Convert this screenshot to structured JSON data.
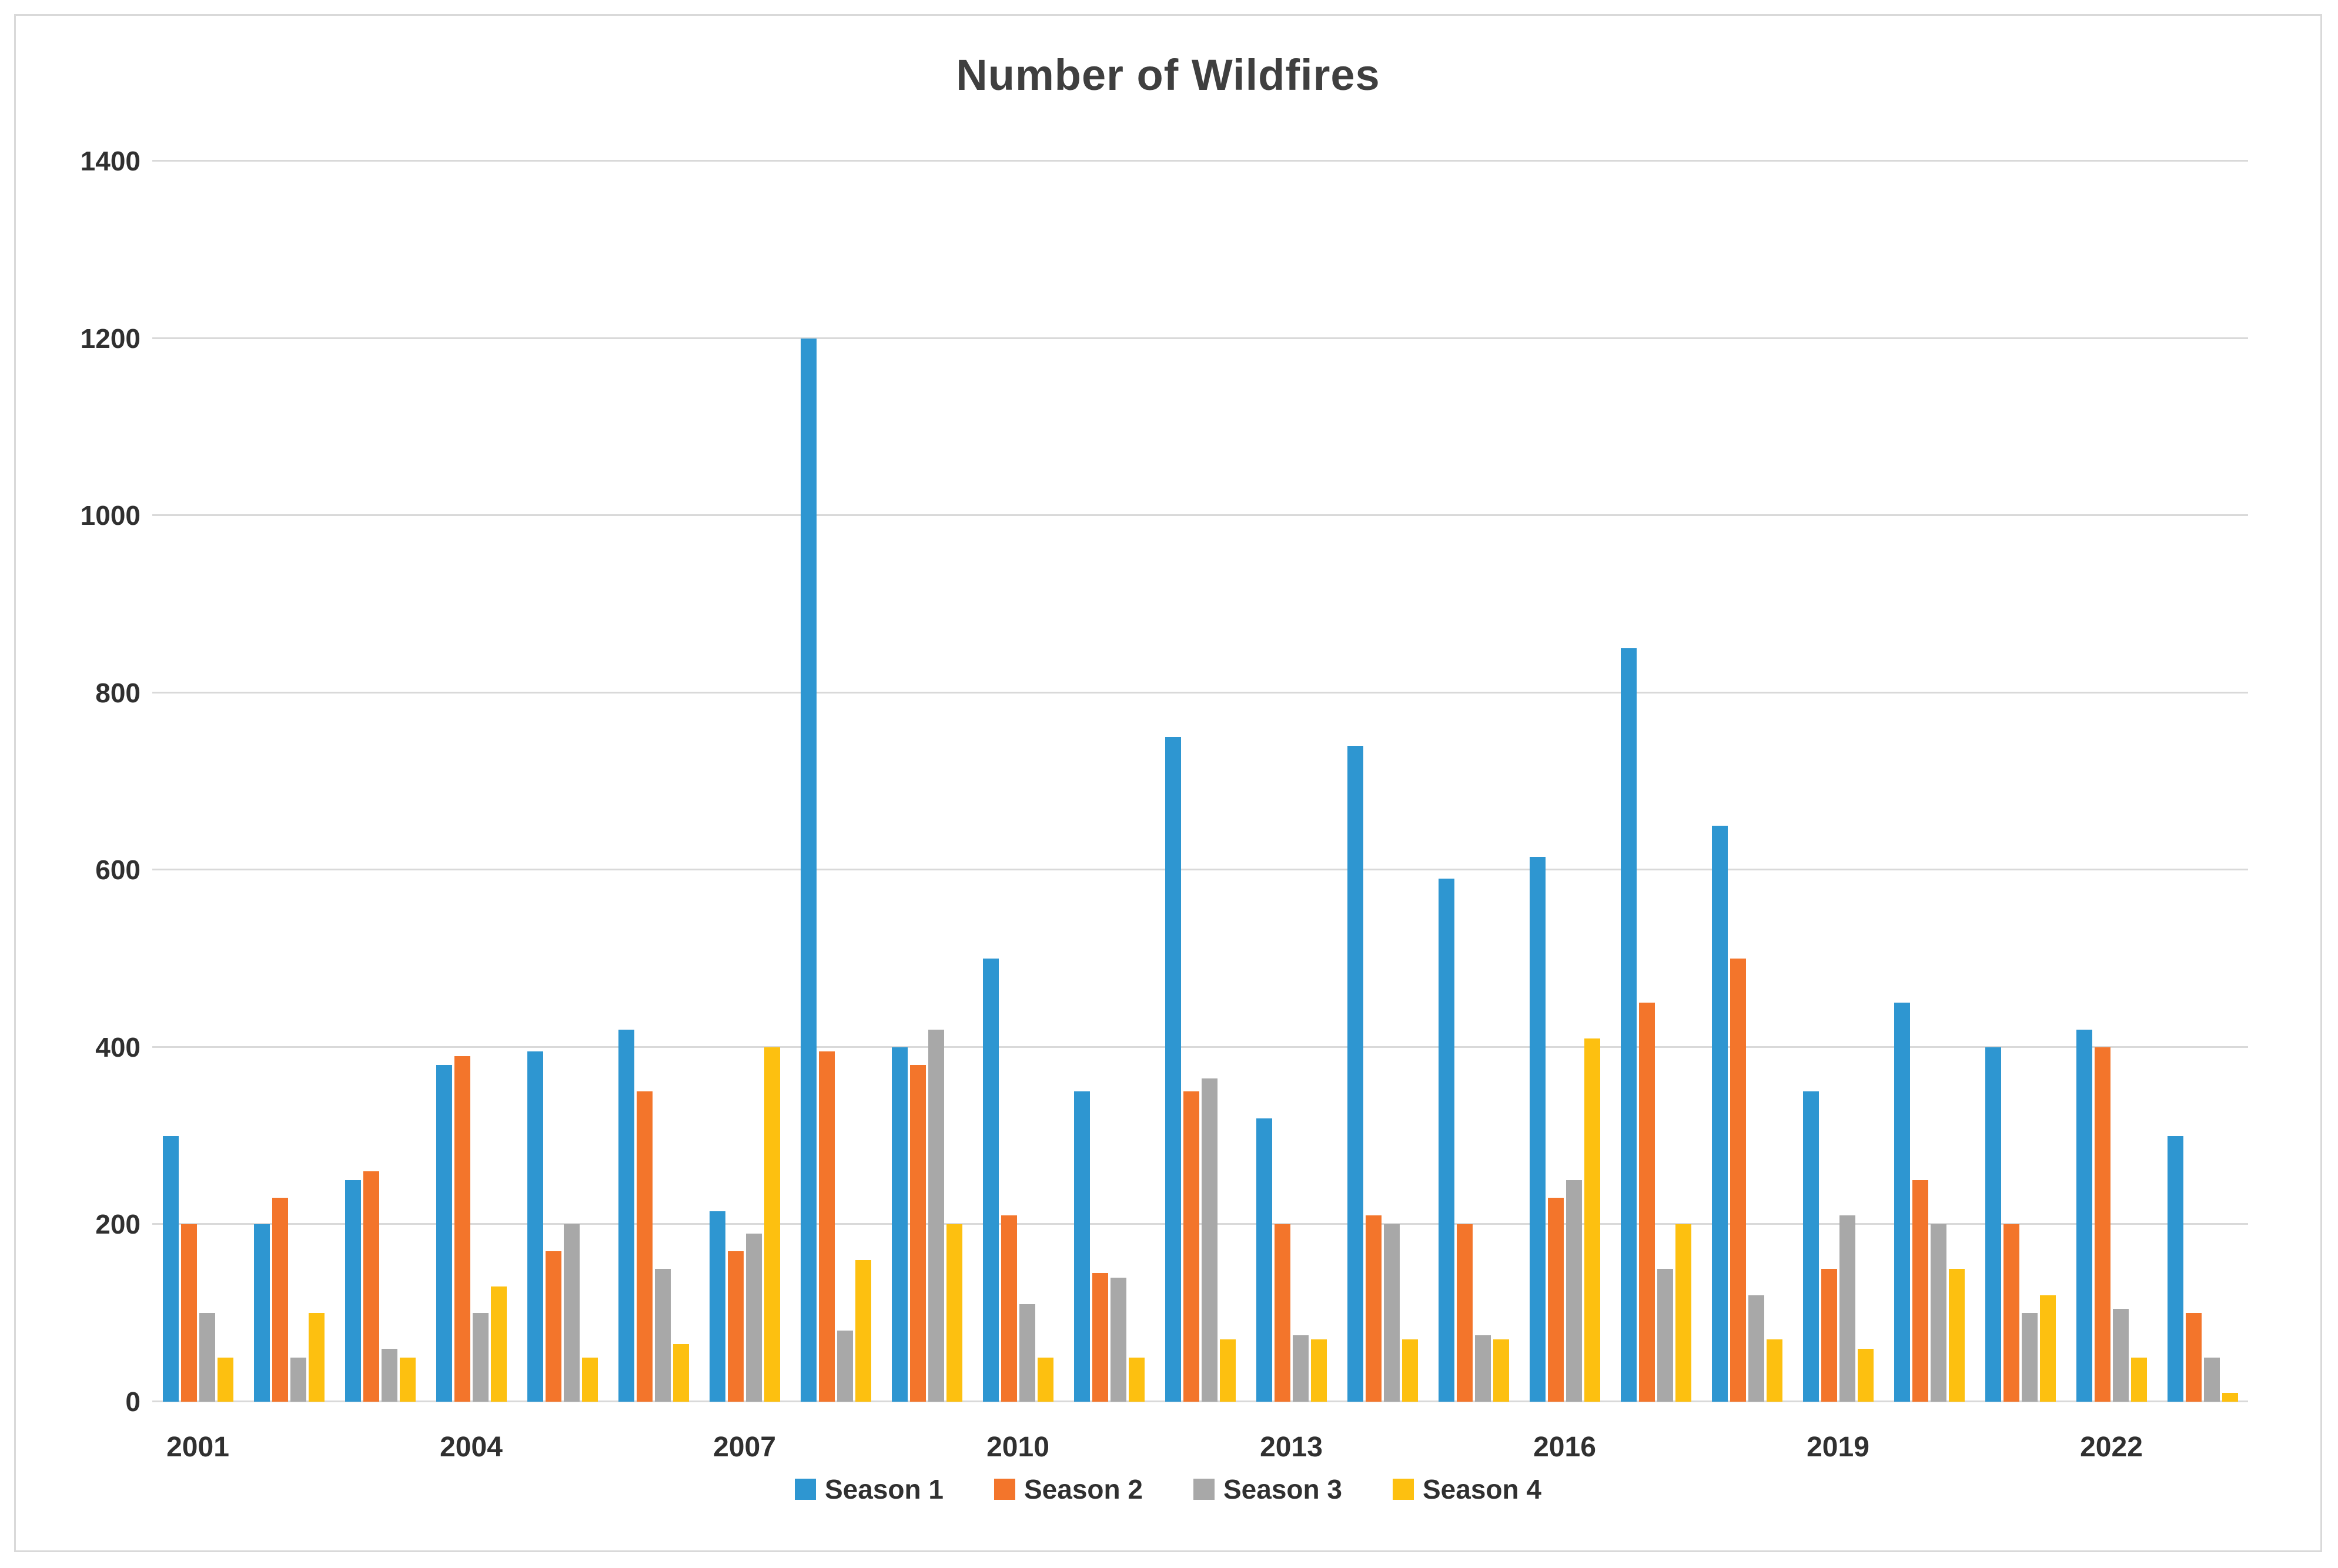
{
  "figure": {
    "title": "Number of Wildfires"
  },
  "chart_data": {
    "type": "bar",
    "title": "Number of Wildfires",
    "xlabel": "",
    "ylabel": "",
    "ylim": [
      0,
      1400
    ],
    "y_ticks": [
      0,
      200,
      400,
      600,
      800,
      1000,
      1200,
      1400
    ],
    "grid": true,
    "legend_position": "bottom",
    "x_labeled_categories": [
      "2001",
      "2004",
      "2007",
      "2010",
      "2013",
      "2016",
      "2019",
      "2022"
    ],
    "categories": [
      "2001",
      "2002",
      "2003",
      "2004",
      "2005",
      "2006",
      "2007",
      "2008",
      "2009",
      "2010",
      "2011",
      "2012",
      "2013",
      "2014",
      "2015",
      "2016",
      "2017",
      "2018",
      "2019",
      "2020",
      "2021",
      "2022",
      "2023"
    ],
    "series": [
      {
        "name": "Season 1",
        "color": "#2E96D1",
        "values": [
          300,
          200,
          250,
          380,
          395,
          420,
          215,
          1200,
          400,
          500,
          350,
          750,
          320,
          740,
          590,
          615,
          850,
          650,
          350,
          450,
          400,
          420,
          300
        ]
      },
      {
        "name": "Season 2",
        "color": "#F3752B",
        "values": [
          200,
          230,
          260,
          390,
          170,
          350,
          170,
          395,
          380,
          210,
          145,
          350,
          200,
          210,
          200,
          230,
          450,
          500,
          150,
          250,
          200,
          400,
          100
        ]
      },
      {
        "name": "Season 3",
        "color": "#A8A8A8",
        "values": [
          100,
          50,
          60,
          100,
          200,
          150,
          190,
          80,
          420,
          110,
          140,
          365,
          75,
          200,
          75,
          250,
          150,
          120,
          210,
          200,
          100,
          105,
          50
        ]
      },
      {
        "name": "Season 4",
        "color": "#FDC010",
        "values": [
          50,
          100,
          50,
          130,
          50,
          65,
          400,
          160,
          200,
          50,
          50,
          70,
          70,
          70,
          70,
          410,
          200,
          70,
          60,
          150,
          120,
          50,
          10
        ]
      }
    ],
    "colors": {
      "text": "#303030",
      "title_text": "#3f3f3f",
      "gridline": "#d9d9d9",
      "border": "#d9d9d9",
      "background": "#ffffff"
    }
  }
}
